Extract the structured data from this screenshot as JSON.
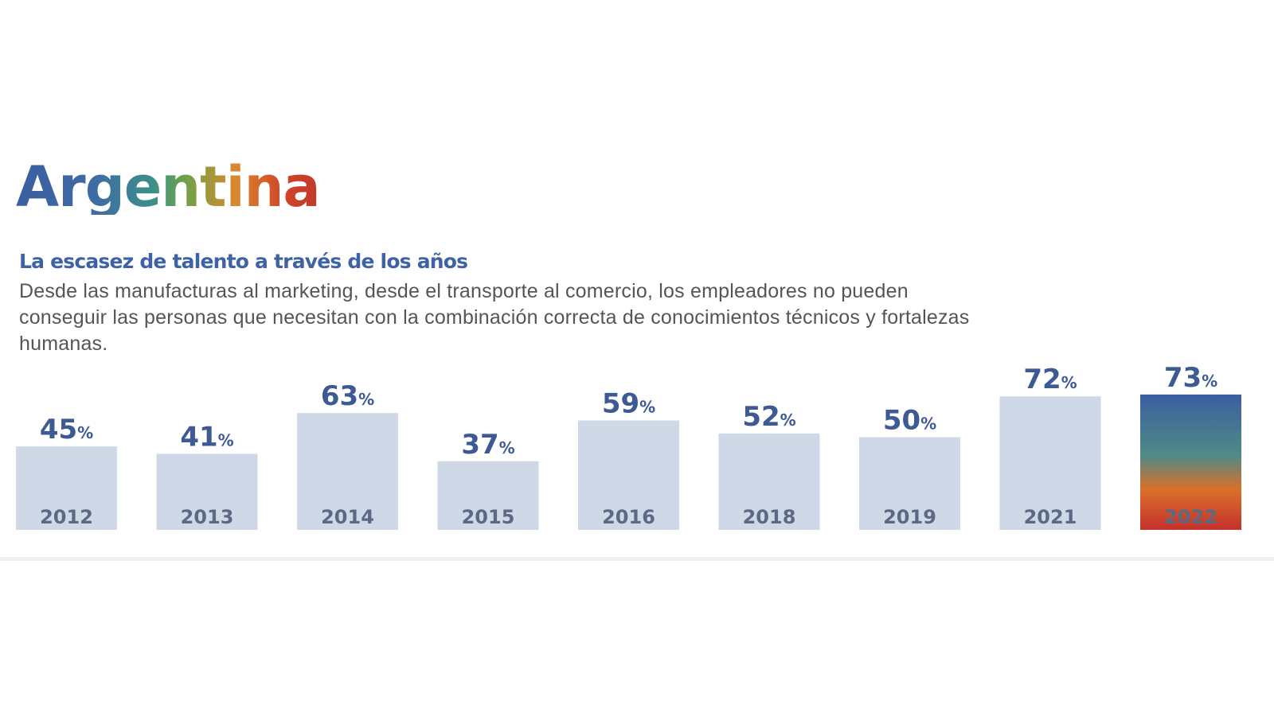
{
  "header": {
    "title": "Argentina",
    "subtitle": "La escasez de talento a través de los años",
    "description": "Desde las manufacturas al marketing, desde el transporte al comercio, los empleadores no pueden conseguir las personas que necesitan con la combinación correcta de conocimientos técnicos y fortalezas humanas."
  },
  "chart_data": {
    "type": "bar",
    "title": "La escasez de talento a través de los años",
    "categories": [
      "2012",
      "2013",
      "2014",
      "2015",
      "2016",
      "2018",
      "2019",
      "2021",
      "2022"
    ],
    "values": [
      45,
      41,
      63,
      37,
      59,
      52,
      50,
      72,
      73
    ],
    "unit": "%",
    "ylim": [
      0,
      73
    ],
    "highlight_index": 8,
    "colors": {
      "bar": "#cfd8e6",
      "highlight_top": "#3b5fa0",
      "highlight_mid": "#4f8a86",
      "highlight_bottom": "#c5312c",
      "label": "#3d5a94",
      "year": "#5b6a82",
      "year_highlight": "#ffffff"
    }
  }
}
